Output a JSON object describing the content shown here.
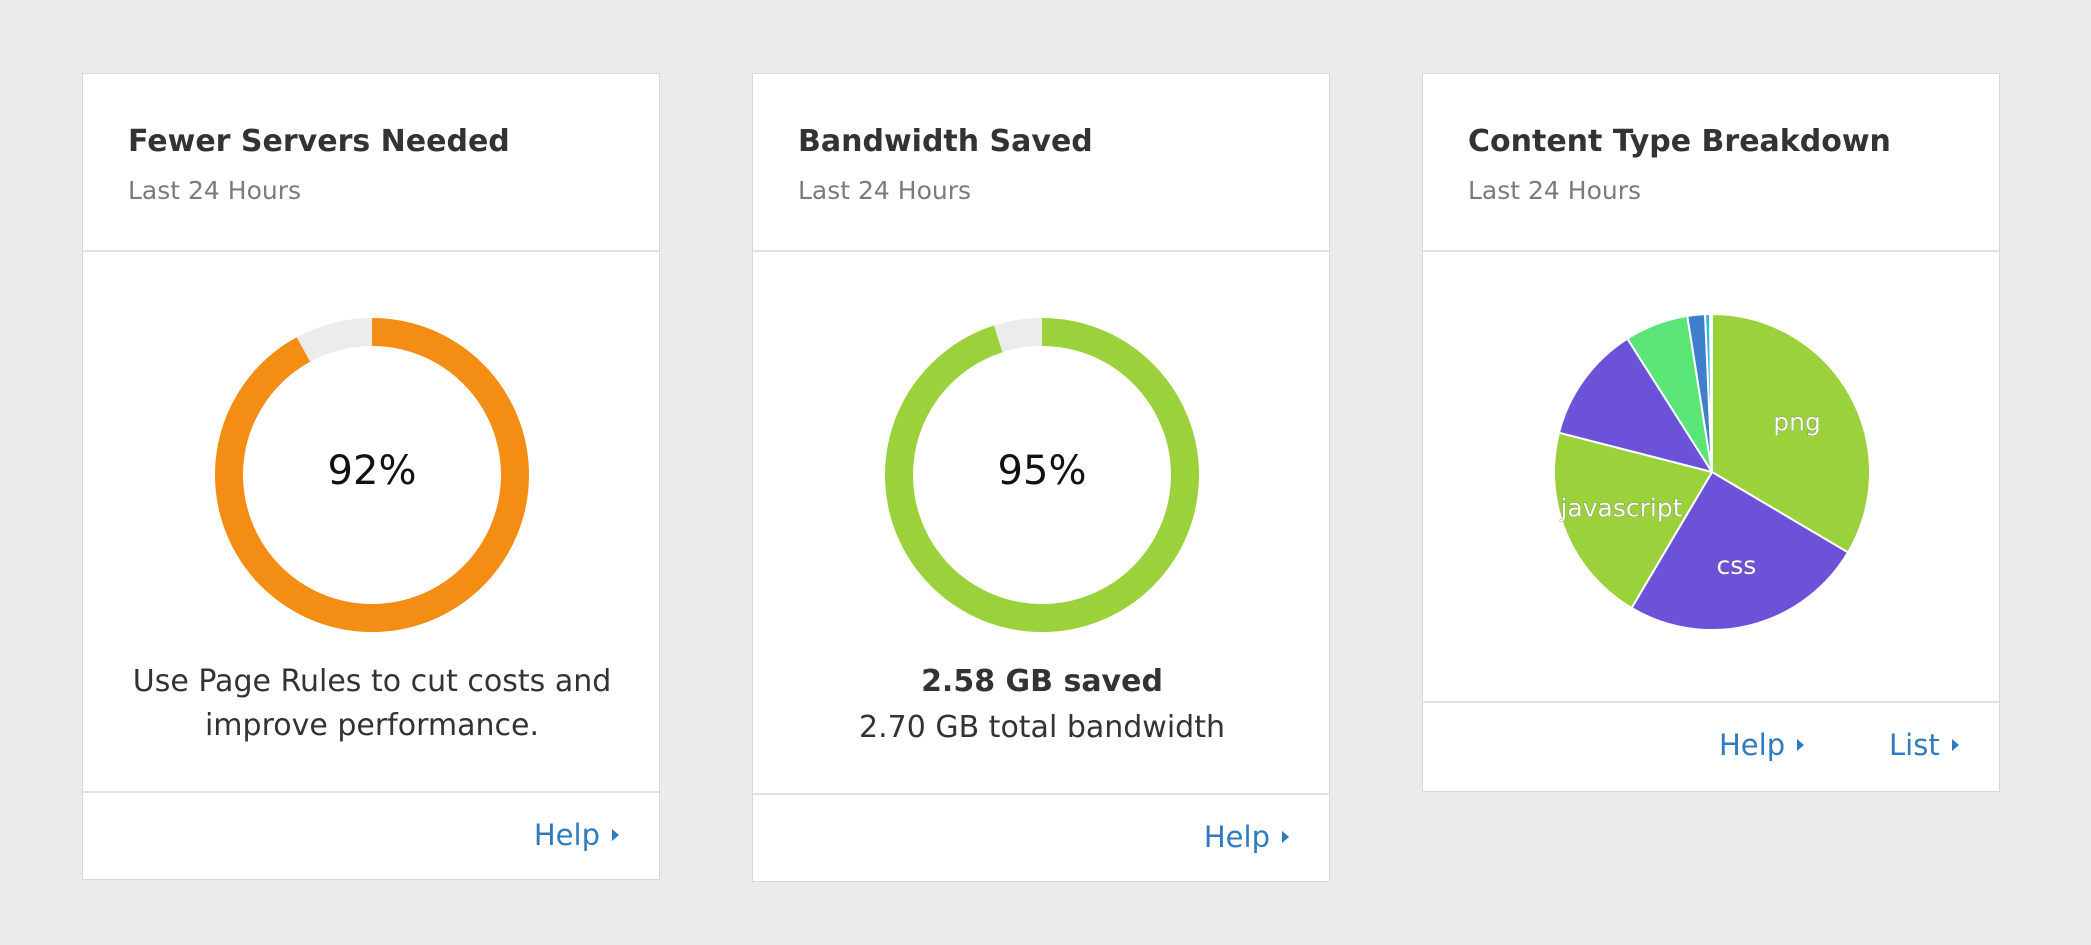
{
  "cards": [
    {
      "title": "Fewer Servers Needed",
      "subtitle": "Last 24 Hours",
      "value_text": "92%",
      "value_fraction": 0.92,
      "ring_color": "#f38d13",
      "track_color": "#ececec",
      "message": "Use Page Rules to cut costs and improve performance.",
      "help_label": "Help"
    },
    {
      "title": "Bandwidth Saved",
      "subtitle": "Last 24 Hours",
      "value_text": "95%",
      "value_fraction": 0.95,
      "ring_color": "#9bd13a",
      "track_color": "#ececec",
      "saved_text": "2.58 GB saved",
      "total_text": "2.70 GB total bandwidth",
      "help_label": "Help"
    },
    {
      "title": "Content Type Breakdown",
      "subtitle": "Last 24 Hours",
      "help_label": "Help",
      "list_label": "List"
    }
  ],
  "chart_data": {
    "type": "pie",
    "slices": [
      {
        "label": "png",
        "value": 33.5,
        "color": "#9bd13a"
      },
      {
        "label": "css",
        "value": 25.0,
        "color": "#6c52d9"
      },
      {
        "label": "javascript",
        "value": 20.5,
        "color": "#9bd13a"
      },
      {
        "label": "",
        "value": 12.0,
        "color": "#6c52d9"
      },
      {
        "label": "",
        "value": 6.5,
        "color": "#5ae677"
      },
      {
        "label": "",
        "value": 1.8,
        "color": "#3f7fcc"
      },
      {
        "label": "",
        "value": 0.5,
        "color": "#2eb5e8"
      },
      {
        "label": "",
        "value": 0.2,
        "color": "#9bd13a"
      }
    ]
  }
}
